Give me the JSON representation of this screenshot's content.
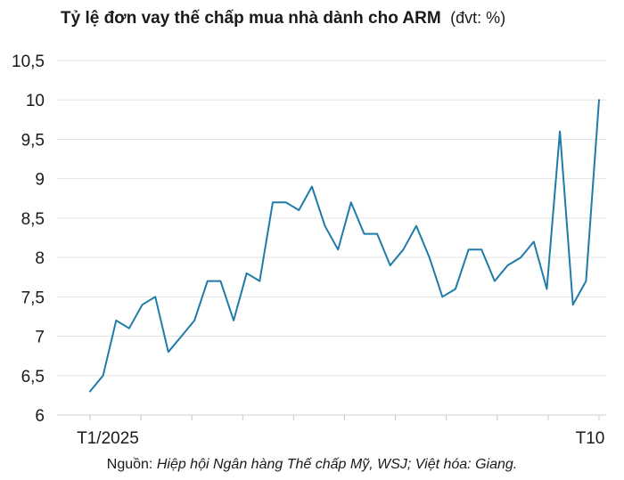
{
  "chart_data": {
    "type": "line",
    "title": "Tỷ lệ đơn vay thế chấp mua nhà dành cho ARM",
    "unit": "(đvt: %)",
    "xlabel": "",
    "ylabel": "",
    "x_tick_labels": [
      "T1/2025",
      "T10"
    ],
    "ylim": [
      6,
      10.5
    ],
    "yticks": [
      "6",
      "6,5",
      "7",
      "7,5",
      "8",
      "8,5",
      "9",
      "9,5",
      "10",
      "10,5"
    ],
    "grid": true,
    "series": [
      {
        "color": "#1f7ba8",
        "values": [
          6.3,
          6.5,
          7.2,
          7.1,
          7.4,
          7.5,
          6.8,
          7.0,
          7.2,
          7.7,
          7.7,
          7.2,
          7.8,
          7.7,
          8.7,
          8.7,
          8.6,
          8.9,
          8.4,
          8.1,
          8.7,
          8.3,
          8.3,
          7.9,
          8.1,
          8.4,
          8.0,
          7.5,
          7.6,
          8.1,
          8.1,
          7.7,
          7.9,
          8.0,
          8.2,
          7.6,
          9.6,
          7.4,
          7.7,
          10.0
        ]
      }
    ]
  },
  "source": {
    "prefix": "Nguồn: ",
    "text": "Hiệp hội Ngân hàng Thế chấp Mỹ, WSJ; Việt hóa: Giang."
  }
}
